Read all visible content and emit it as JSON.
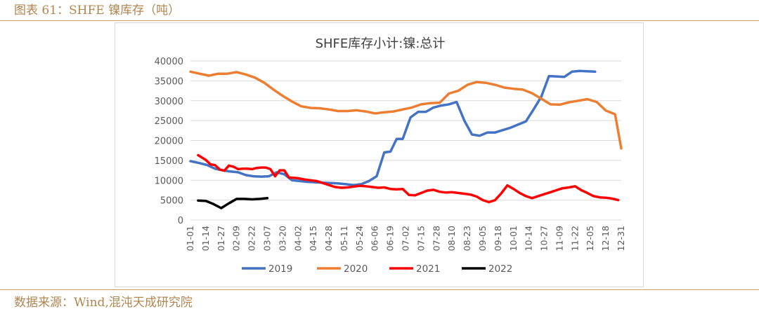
{
  "header": {
    "title": "图表 61：SHFE 镍库存（吨）"
  },
  "footer": {
    "source": "数据来源：Wind,混沌天成研究院"
  },
  "colors": {
    "2019": "#4472c4",
    "2020": "#ed7d31",
    "2021": "#ff0000",
    "2022": "#000000",
    "grid": "#d9d9d9",
    "text": "#595959"
  },
  "chart_data": {
    "type": "line",
    "title": "SHFE库存小计:镍:总计",
    "xlabel": "",
    "ylabel": "",
    "ylim": [
      0,
      40000
    ],
    "y_ticks": [
      0,
      5000,
      10000,
      15000,
      20000,
      25000,
      30000,
      35000,
      40000
    ],
    "grid": true,
    "legend_position": "bottom",
    "categories": [
      "01-01",
      "01-14",
      "01-27",
      "02-09",
      "02-22",
      "03-07",
      "03-20",
      "04-02",
      "04-15",
      "04-28",
      "05-11",
      "05-24",
      "06-06",
      "06-19",
      "07-02",
      "07-15",
      "07-28",
      "08-10",
      "08-23",
      "09-05",
      "09-18",
      "10-01",
      "10-14",
      "10-27",
      "11-09",
      "11-22",
      "12-05",
      "12-18",
      "12-31"
    ],
    "series": [
      {
        "name": "2019",
        "x": [
          0,
          0.6,
          1.1,
          1.6,
          2.1,
          2.6,
          3.1,
          3.6,
          4.1,
          4.6,
          5.1,
          5.6,
          6.1,
          6.6,
          7.1,
          7.6,
          8.1,
          8.6,
          9.1,
          9.6,
          10.1,
          10.6,
          11.1,
          11.6,
          12.1,
          12.6,
          13.0,
          13.4,
          13.8,
          14.3,
          14.8,
          15.3,
          15.8,
          16.3,
          16.8,
          17.3,
          17.8,
          18.3,
          18.8,
          19.3,
          19.8,
          20.3,
          20.8,
          21.3,
          21.8,
          22.3,
          22.8,
          23.3,
          23.8,
          24.3,
          24.8,
          25.3,
          25.8,
          26.3,
          26.8,
          27.3,
          27.8
        ],
        "y": [
          14800,
          14300,
          13800,
          12900,
          12500,
          12200,
          12000,
          11300,
          11000,
          10900,
          11000,
          12000,
          11500,
          10000,
          9800,
          9600,
          9500,
          9400,
          9300,
          9200,
          9000,
          8800,
          9000,
          9800,
          11000,
          17000,
          17200,
          20400,
          20400,
          25800,
          27200,
          27200,
          28300,
          28800,
          29100,
          29700,
          25000,
          21500,
          21200,
          22000,
          22000,
          22600,
          23200,
          24000,
          24800,
          27800,
          31000,
          36200,
          36100,
          36000,
          37300,
          37500,
          37400,
          37300,
          null,
          null,
          null
        ]
      },
      {
        "name": "2020",
        "x": [
          0,
          0.6,
          1.2,
          1.8,
          2.4,
          3.0,
          3.6,
          4.2,
          4.8,
          5.4,
          6.0,
          6.6,
          7.2,
          7.8,
          8.4,
          9.0,
          9.6,
          10.2,
          10.8,
          11.4,
          12.0,
          12.6,
          13.2,
          13.8,
          14.4,
          15.0,
          15.6,
          16.2,
          16.8,
          17.4,
          18.0,
          18.6,
          19.2,
          19.8,
          20.4,
          21.0,
          21.6,
          22.2,
          22.8,
          23.4,
          24.0,
          24.6,
          25.2,
          25.8,
          26.4,
          27.0,
          27.6,
          28.0
        ],
        "y": [
          37300,
          36800,
          36300,
          36800,
          36800,
          37200,
          36600,
          35800,
          34500,
          32800,
          31200,
          29800,
          28600,
          28200,
          28100,
          27800,
          27400,
          27400,
          27600,
          27300,
          26800,
          27100,
          27300,
          27800,
          28300,
          29100,
          29400,
          29500,
          31800,
          32500,
          34000,
          34700,
          34500,
          34000,
          33300,
          33000,
          32800,
          31900,
          30500,
          29100,
          29000,
          29600,
          30000,
          30400,
          29700,
          27500,
          26600,
          18000
        ]
      },
      {
        "name": "2021",
        "x": [
          0.5,
          1.0,
          1.3,
          1.6,
          1.9,
          2.2,
          2.5,
          2.8,
          3.1,
          3.4,
          3.7,
          4.0,
          4.3,
          4.6,
          4.9,
          5.2,
          5.5,
          5.8,
          6.1,
          6.4,
          6.7,
          7.0,
          7.4,
          7.8,
          8.2,
          8.6,
          9.0,
          9.4,
          9.8,
          10.2,
          10.6,
          11.0,
          11.4,
          11.8,
          12.2,
          12.6,
          13.0,
          13.4,
          13.8,
          14.2,
          14.6,
          15.0,
          15.4,
          15.8,
          16.2,
          16.6,
          17.0,
          17.4,
          17.8,
          18.2,
          18.6,
          19.0,
          19.4,
          19.8,
          20.2,
          20.6,
          21.0,
          21.4,
          21.8,
          22.2,
          22.6,
          23.0,
          23.4,
          23.8,
          24.2,
          24.6,
          25.0,
          25.4,
          25.8,
          26.2,
          26.6,
          27.0,
          27.4,
          27.8
        ],
        "y": [
          16300,
          15100,
          14000,
          13800,
          12700,
          12400,
          13700,
          13400,
          12800,
          12900,
          12900,
          12800,
          13100,
          13200,
          13200,
          12800,
          11000,
          12500,
          12500,
          10700,
          10600,
          10500,
          10200,
          10000,
          9800,
          9300,
          8800,
          8300,
          8100,
          8200,
          8400,
          8600,
          8500,
          8300,
          8100,
          8200,
          7800,
          7700,
          7800,
          6300,
          6200,
          6800,
          7400,
          7600,
          7100,
          6900,
          7000,
          6800,
          6600,
          6400,
          5900,
          5000,
          4500,
          5000,
          6700,
          8700,
          7800,
          6800,
          6000,
          5500,
          6000,
          6500,
          7000,
          7500,
          8000,
          8200,
          8500,
          7500,
          6800,
          6000,
          5700,
          5600,
          5400,
          5000
        ]
      },
      {
        "name": "2022",
        "x": [
          0.5,
          1.0,
          1.5,
          2.0,
          2.5,
          3.0,
          3.5,
          4.0,
          4.5,
          5.0
        ],
        "y": [
          4900,
          4800,
          4000,
          3000,
          4200,
          5300,
          5300,
          5200,
          5300,
          5500
        ]
      }
    ]
  }
}
